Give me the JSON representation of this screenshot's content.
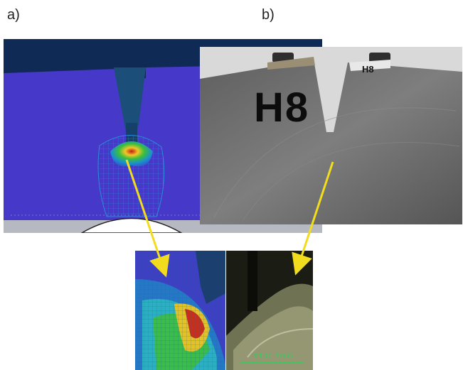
{
  "labels": {
    "panel_a": "a)",
    "panel_b": "b)"
  },
  "specimen": {
    "marker_text": "H8",
    "tag_text": "H8"
  },
  "micrograph": {
    "scale_text": "X100 1mm"
  },
  "colors": {
    "fe_background": "#4638c8",
    "fe_top_band": "#0f2a55",
    "mesh_line": "#2a8bd8",
    "arrow": "#f2dc1e",
    "photo_bg": "#7c7c7c",
    "scale_text": "#27d35a"
  }
}
